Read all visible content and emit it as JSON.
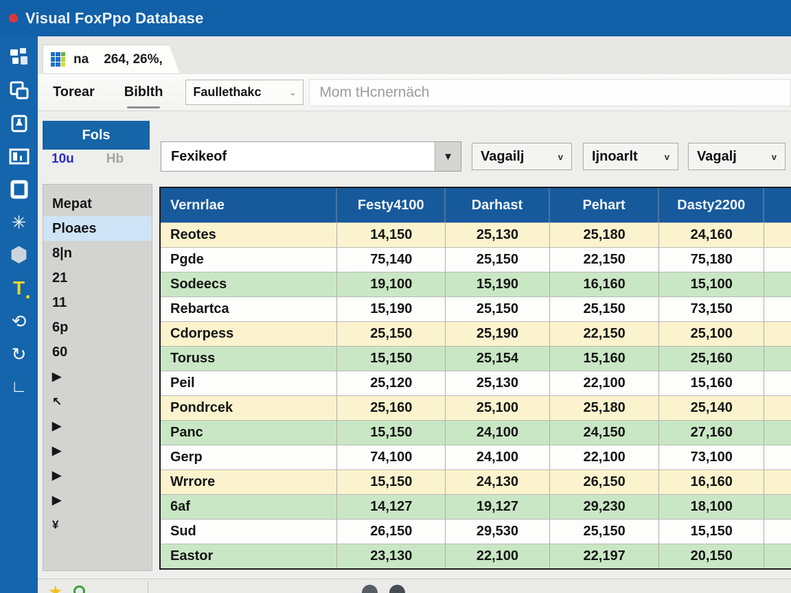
{
  "window": {
    "title": "Visual FoxPpo Database"
  },
  "tab": {
    "name": "na",
    "info": "264, 26%,"
  },
  "menubar": {
    "item1": "Torear",
    "item2": "Biblth",
    "dropdown_label": "Faullethakc",
    "dropdown_chevron": "⌄",
    "search_placeholder": "Mom tHcnernäch"
  },
  "controls": {
    "fols_button": "Fols",
    "mini_primary": "10u",
    "mini_secondary": "Hb",
    "combo_main": "Fexikeof",
    "combo_main_chevron": "▼",
    "combo2": "Vagailj",
    "combo3": "Ijnoarlt",
    "combo4": "Vagalj",
    "combo_chevron": "v"
  },
  "sidebar_icons": {
    "burst_glyph": "✳",
    "hexagon_glyph": "⬢",
    "text_tool_glyph": "T",
    "loop_glyph": "⟲",
    "refresh_glyph": "↻",
    "corner_glyph": "∟"
  },
  "list_panel": {
    "items": [
      {
        "label": "Mepat",
        "selected": false,
        "glyph": false
      },
      {
        "label": "Ploaes",
        "selected": true,
        "glyph": false
      },
      {
        "label": "8|n",
        "selected": false,
        "glyph": false
      },
      {
        "label": "21",
        "selected": false,
        "glyph": false
      },
      {
        "label": "11",
        "selected": false,
        "glyph": false
      },
      {
        "label": "6p",
        "selected": false,
        "glyph": false
      },
      {
        "label": "60",
        "selected": false,
        "glyph": false
      },
      {
        "label": "▶",
        "selected": false,
        "glyph": true
      },
      {
        "label": "↖",
        "selected": false,
        "glyph": true
      },
      {
        "label": "▶",
        "selected": false,
        "glyph": true
      },
      {
        "label": "▶",
        "selected": false,
        "glyph": true
      },
      {
        "label": "▶",
        "selected": false,
        "glyph": true
      },
      {
        "label": "▶",
        "selected": false,
        "glyph": true
      },
      {
        "label": "¥",
        "selected": false,
        "glyph": true
      }
    ]
  },
  "table": {
    "columns": [
      "Vernrlae",
      "Festy4100",
      "Darhast",
      "Pehart",
      "Dasty2200",
      ""
    ],
    "rows": [
      {
        "name": "Reotes",
        "values": [
          "14,150",
          "25,130",
          "25,180",
          "24,160"
        ],
        "tone": "yellow"
      },
      {
        "name": "Pgde",
        "values": [
          "75,140",
          "25,150",
          "22,150",
          "75,180"
        ],
        "tone": "white"
      },
      {
        "name": "Sodeecs",
        "values": [
          "19,100",
          "15,190",
          "16,160",
          "15,100"
        ],
        "tone": "green"
      },
      {
        "name": "Rebartca",
        "values": [
          "15,190",
          "25,150",
          "25,150",
          "73,150"
        ],
        "tone": "white"
      },
      {
        "name": "Cdorpess",
        "values": [
          "25,150",
          "25,190",
          "22,150",
          "25,100"
        ],
        "tone": "yellow"
      },
      {
        "name": "Toruss",
        "values": [
          "15,150",
          "25,154",
          "15,160",
          "25,160"
        ],
        "tone": "green"
      },
      {
        "name": "Peil",
        "values": [
          "25,120",
          "25,130",
          "22,100",
          "15,160"
        ],
        "tone": "white"
      },
      {
        "name": "Pondrcek",
        "values": [
          "25,160",
          "25,100",
          "25,180",
          "25,140"
        ],
        "tone": "yellow"
      },
      {
        "name": "Panc",
        "values": [
          "15,150",
          "24,100",
          "24,150",
          "27,160"
        ],
        "tone": "green"
      },
      {
        "name": "Gerp",
        "values": [
          "74,100",
          "24,100",
          "22,100",
          "73,100"
        ],
        "tone": "white"
      },
      {
        "name": "Wrrore",
        "values": [
          "15,150",
          "24,130",
          "26,150",
          "16,160"
        ],
        "tone": "yellow"
      },
      {
        "name": "6af",
        "values": [
          "14,127",
          "19,127",
          "29,230",
          "18,100"
        ],
        "tone": "green"
      },
      {
        "name": "Sud",
        "values": [
          "26,150",
          "29,530",
          "25,150",
          "15,150"
        ],
        "tone": "white"
      },
      {
        "name": "Eastor",
        "values": [
          "23,130",
          "22,100",
          "22,197",
          "20,150"
        ],
        "tone": "green"
      }
    ]
  },
  "bottombar": {
    "star_glyph": "★"
  },
  "colors": {
    "titlebar_blue": "#1160a8",
    "sidebar_blue": "#1565ac",
    "header_blue": "#175a9c",
    "row_yellow": "#faf3cd",
    "row_green": "#c9e7c4",
    "selected_item": "#cfe4f7",
    "accent_red": "#d93a3a",
    "accent_yellow": "#e8d52c"
  }
}
